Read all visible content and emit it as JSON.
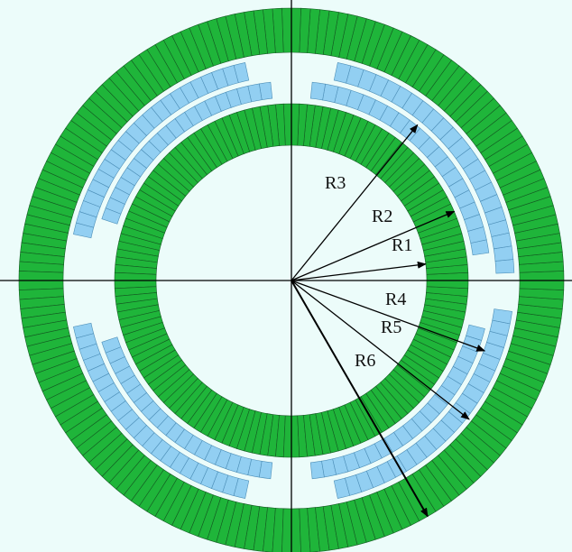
{
  "colors": {
    "background": "#ecfcfa",
    "outer_ring": "#1fb53a",
    "inner_ring": "#1fb53a",
    "coil_blocks": "#92cff2",
    "segment_lines": "#145a22",
    "block_lines": "#4d8fb8",
    "axes_and_arrows": "#000000"
  },
  "labels": {
    "r1": "R1",
    "r2": "R2",
    "r3": "R3",
    "r4": "R4",
    "r5": "R5",
    "r6": "R6"
  }
}
